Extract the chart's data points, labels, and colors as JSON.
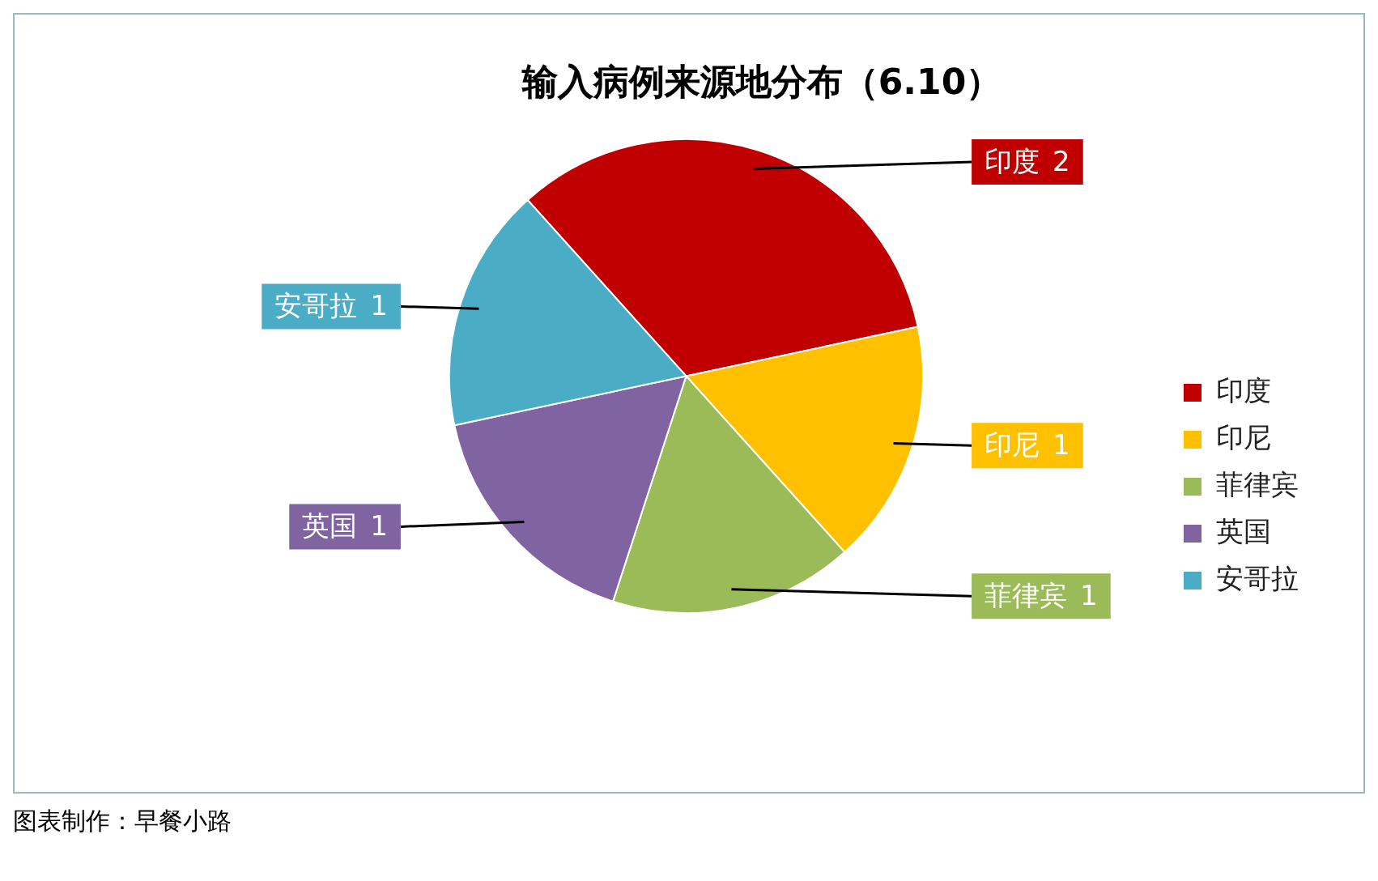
{
  "chart_data": {
    "type": "pie",
    "title": "输入病例来源地分布（6.10）",
    "categories": [
      "印度",
      "印尼",
      "菲律宾",
      "英国",
      "安哥拉"
    ],
    "values": [
      2,
      1,
      1,
      1,
      1
    ],
    "colors": [
      "#c00000",
      "#ffc000",
      "#9bbb59",
      "#8064a2",
      "#4bacc6"
    ],
    "data_labels": true,
    "legend": "right",
    "annotations": [
      "图表制作：早餐小路"
    ]
  }
}
